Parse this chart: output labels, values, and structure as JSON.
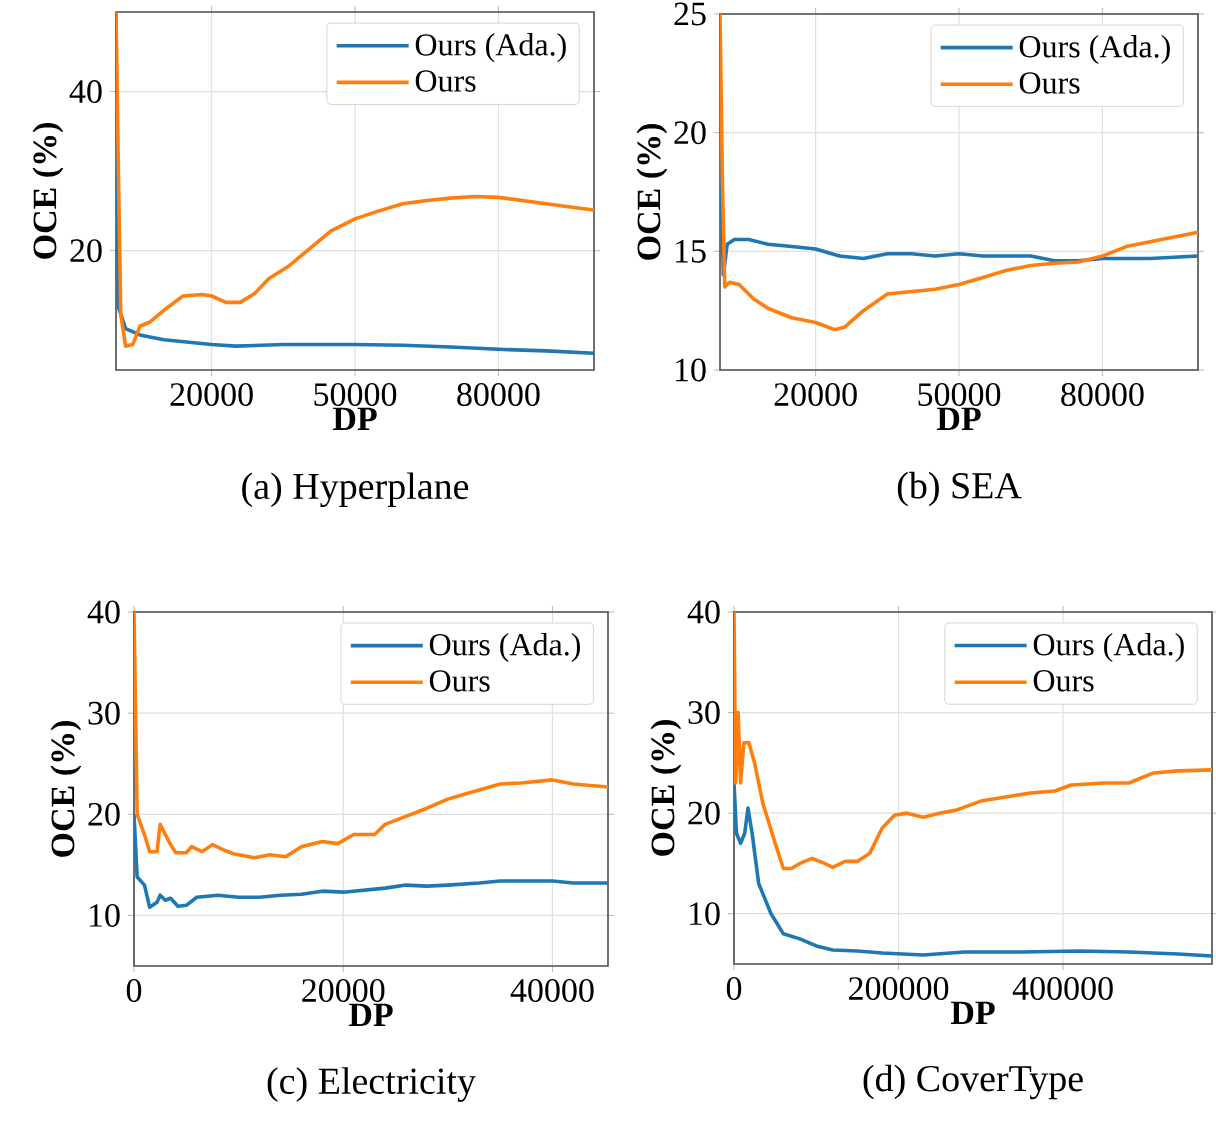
{
  "chart_data": [
    {
      "type": "line",
      "title": "(a) Hyperplane",
      "xlabel": "DP",
      "ylabel": "OCE (%)",
      "xlim": [
        0,
        100000
      ],
      "ylim": [
        5,
        50
      ],
      "xticks": [
        20000,
        50000,
        80000
      ],
      "yticks": [
        20,
        40
      ],
      "grid": true,
      "legend": "top right",
      "series": [
        {
          "name": "Ours (Ada.)",
          "color": "#1f77b4",
          "x": [
            0,
            500,
            1000,
            2000,
            5000,
            10000,
            20000,
            25000,
            35000,
            50000,
            60000,
            70000,
            80000,
            90000,
            100000
          ],
          "values": [
            50,
            12.9,
            12,
            10.2,
            9.4,
            8.8,
            8.2,
            8.0,
            8.2,
            8.2,
            8.1,
            7.9,
            7.6,
            7.4,
            7.1
          ]
        },
        {
          "name": "Ours",
          "color": "#ff7f0e",
          "x": [
            0,
            500,
            1000,
            2000,
            3500,
            5000,
            7000,
            10000,
            14000,
            18000,
            20000,
            23000,
            26000,
            29000,
            32000,
            36000,
            40000,
            45000,
            50000,
            55000,
            60000,
            65000,
            70000,
            75000,
            80000,
            85000,
            90000,
            95000,
            100000
          ],
          "values": [
            50,
            30,
            12,
            8,
            8.2,
            10.5,
            11,
            12.5,
            14.3,
            14.5,
            14.3,
            13.5,
            13.5,
            14.6,
            16.5,
            18,
            20,
            22.5,
            24,
            25,
            25.9,
            26.3,
            26.6,
            26.8,
            26.7,
            26.3,
            25.9,
            25.5,
            25.1
          ]
        }
      ]
    },
    {
      "type": "line",
      "title": "(b) SEA",
      "xlabel": "DP",
      "ylabel": "OCE (%)",
      "xlim": [
        0,
        100000
      ],
      "ylim": [
        10,
        25
      ],
      "xticks": [
        20000,
        50000,
        80000
      ],
      "yticks": [
        10,
        15,
        20,
        25
      ],
      "grid": true,
      "legend": "top right",
      "series": [
        {
          "name": "Ours (Ada.)",
          "color": "#1f77b4",
          "x": [
            0,
            700,
            1500,
            3000,
            6000,
            10000,
            15000,
            20000,
            25000,
            30000,
            35000,
            40000,
            45000,
            50000,
            55000,
            60000,
            65000,
            70000,
            75000,
            80000,
            90000,
            100000
          ],
          "values": [
            20,
            14,
            15.3,
            15.5,
            15.5,
            15.3,
            15.2,
            15.1,
            14.8,
            14.7,
            14.9,
            14.9,
            14.8,
            14.9,
            14.8,
            14.8,
            14.8,
            14.6,
            14.6,
            14.7,
            14.7,
            14.8
          ]
        },
        {
          "name": "Ours",
          "color": "#ff7f0e",
          "x": [
            0,
            500,
            1000,
            2000,
            4000,
            7000,
            10000,
            15000,
            20000,
            24000,
            26000,
            30000,
            35000,
            40000,
            45000,
            50000,
            55000,
            60000,
            65000,
            70000,
            75000,
            80000,
            85000,
            90000,
            95000,
            100000
          ],
          "values": [
            25,
            18,
            13.5,
            13.7,
            13.6,
            13,
            12.6,
            12.2,
            12,
            11.7,
            11.8,
            12.5,
            13.2,
            13.3,
            13.4,
            13.6,
            13.9,
            14.2,
            14.4,
            14.5,
            14.55,
            14.8,
            15.2,
            15.4,
            15.6,
            15.8
          ]
        }
      ]
    },
    {
      "type": "line",
      "title": "(c) Electricity",
      "xlabel": "DP",
      "ylabel": "OCE (%)",
      "xlim": [
        0,
        45312
      ],
      "ylim": [
        5,
        40
      ],
      "xticks": [
        0,
        20000,
        40000
      ],
      "yticks": [
        10,
        20,
        30,
        40
      ],
      "grid": true,
      "legend": "top right",
      "series": [
        {
          "name": "Ours (Ada.)",
          "color": "#1f77b4",
          "x": [
            0,
            300,
            1000,
            1500,
            2200,
            2500,
            3000,
            3500,
            4200,
            5000,
            6000,
            8000,
            10000,
            12000,
            14000,
            16000,
            18000,
            20000,
            22000,
            24000,
            26000,
            28000,
            30000,
            33000,
            35000,
            38000,
            40000,
            42000,
            45312
          ],
          "values": [
            20,
            13.8,
            13,
            10.8,
            11.3,
            12,
            11.5,
            11.7,
            10.9,
            11,
            11.8,
            12,
            11.8,
            11.8,
            12,
            12.1,
            12.4,
            12.3,
            12.5,
            12.7,
            13,
            12.9,
            13,
            13.2,
            13.4,
            13.4,
            13.4,
            13.2,
            13.2
          ]
        },
        {
          "name": "Ours",
          "color": "#ff7f0e",
          "x": [
            0,
            300,
            1000,
            1500,
            2200,
            2500,
            3000,
            3500,
            4000,
            5000,
            5500,
            6500,
            7500,
            8500,
            9500,
            11500,
            13000,
            14500,
            16000,
            18000,
            19500,
            21000,
            23000,
            24000,
            26000,
            28000,
            30000,
            32000,
            35000,
            37000,
            40000,
            42000,
            45312
          ],
          "values": [
            40,
            20,
            18,
            16.3,
            16.3,
            19,
            18,
            17,
            16.2,
            16.2,
            16.8,
            16.3,
            17,
            16.5,
            16.1,
            15.7,
            16,
            15.8,
            16.8,
            17.3,
            17.1,
            18,
            18,
            19,
            19.8,
            20.6,
            21.5,
            22.1,
            23,
            23.1,
            23.4,
            23,
            22.7
          ]
        }
      ]
    },
    {
      "type": "line",
      "title": "(d) CoverType",
      "xlabel": "DP",
      "ylabel": "OCE (%)",
      "xlim": [
        0,
        581012
      ],
      "ylim": [
        5,
        40
      ],
      "xticks": [
        0,
        200000,
        400000
      ],
      "yticks": [
        10,
        20,
        30,
        40
      ],
      "grid": true,
      "legend": "top right",
      "series": [
        {
          "name": "Ours (Ada.)",
          "color": "#1f77b4",
          "x": [
            0,
            3000,
            8000,
            13000,
            17000,
            22000,
            30000,
            45000,
            60000,
            80000,
            100000,
            120000,
            150000,
            180000,
            230000,
            280000,
            350000,
            420000,
            480000,
            540000,
            581012
          ],
          "values": [
            23,
            18,
            17,
            18,
            20.5,
            18,
            13,
            10,
            8,
            7.5,
            6.8,
            6.4,
            6.3,
            6.1,
            5.9,
            6.2,
            6.2,
            6.3,
            6.2,
            6.0,
            5.8
          ]
        },
        {
          "name": "Ours",
          "color": "#ff7f0e",
          "x": [
            0,
            2000,
            5000,
            8000,
            12000,
            18000,
            25000,
            35000,
            50000,
            60000,
            70000,
            80000,
            95000,
            110000,
            120000,
            135000,
            150000,
            165000,
            180000,
            195000,
            210000,
            230000,
            250000,
            270000,
            300000,
            330000,
            360000,
            390000,
            410000,
            450000,
            480000,
            510000,
            540000,
            581012
          ],
          "values": [
            40,
            23,
            30,
            23,
            27,
            27,
            25,
            21,
            17,
            14.5,
            14.5,
            15,
            15.5,
            15,
            14.6,
            15.2,
            15.2,
            16,
            18.5,
            19.8,
            20,
            19.6,
            20,
            20.3,
            21.2,
            21.6,
            22,
            22.2,
            22.8,
            23,
            23,
            24,
            24.2,
            24.3
          ]
        }
      ]
    }
  ]
}
